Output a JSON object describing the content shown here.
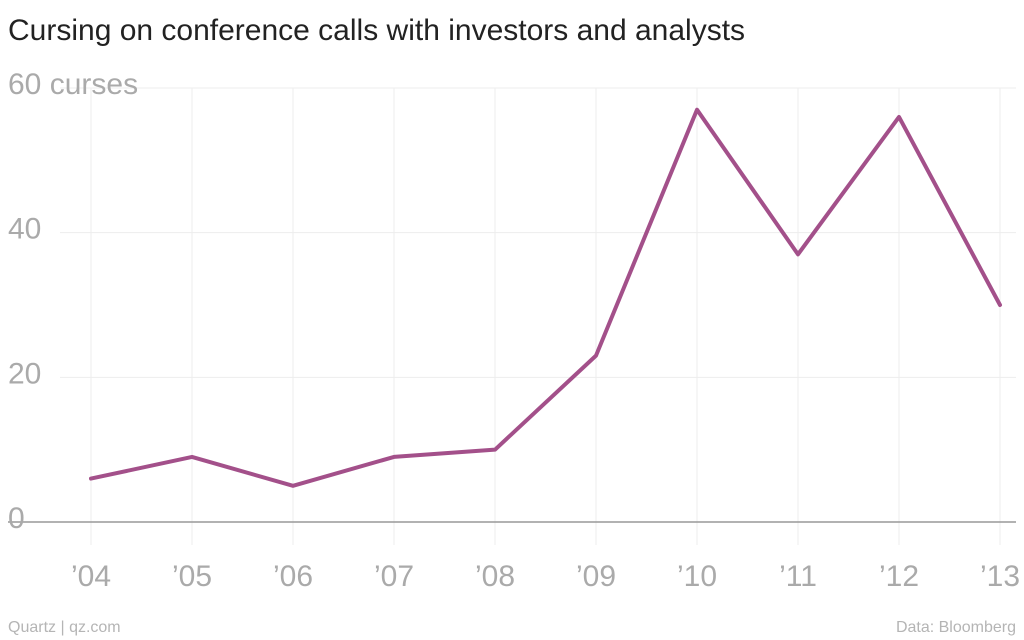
{
  "chart_data": {
    "type": "line",
    "title": "Cursing on conference calls with investors and analysts",
    "categories": [
      "’04",
      "’05",
      "’06",
      "’07",
      "’08",
      "’09",
      "’10",
      "’11",
      "’12",
      "’13"
    ],
    "values": [
      6,
      9,
      5,
      9,
      10,
      23,
      57,
      37,
      56,
      30
    ],
    "color": "#a3508a",
    "ylim": [
      0,
      60
    ],
    "yticks": [
      0,
      20,
      40,
      {
        "value": 60,
        "label": "60 curses"
      }
    ],
    "grid": true,
    "source_left": "Quartz | qz.com",
    "source_right": "Data: Bloomberg"
  }
}
